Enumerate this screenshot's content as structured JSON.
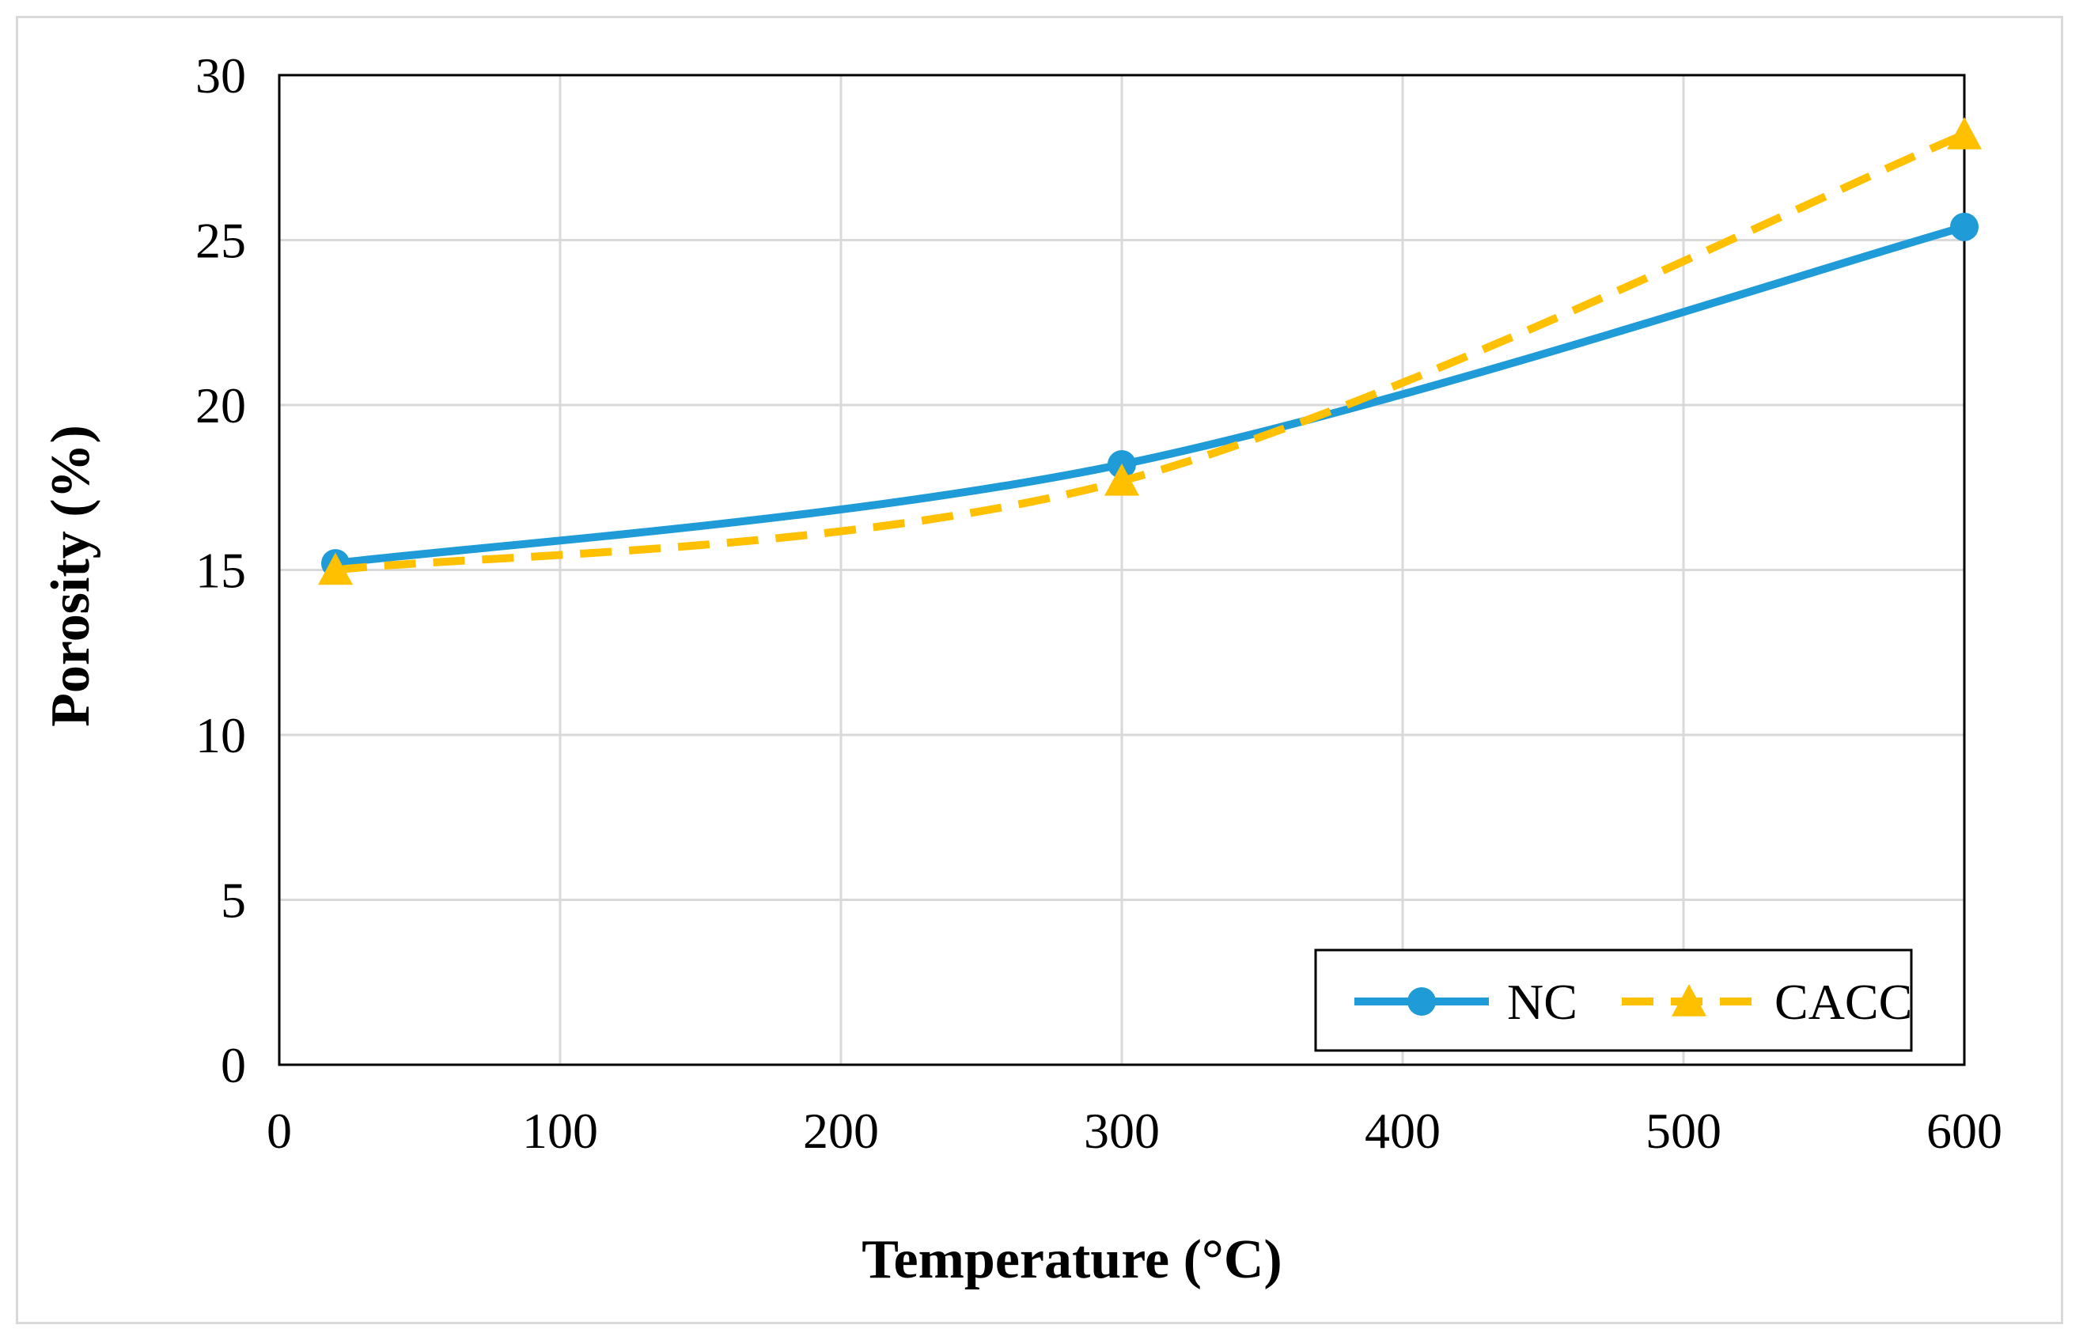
{
  "chart_data": {
    "type": "line",
    "title": "",
    "xlabel": "Temperature (°C)",
    "ylabel": "Porosity (%)",
    "xlim": [
      0,
      600
    ],
    "ylim": [
      0,
      30
    ],
    "xticks": [
      0,
      100,
      200,
      300,
      400,
      500,
      600
    ],
    "yticks": [
      0,
      5,
      10,
      15,
      20,
      25,
      30
    ],
    "grid": true,
    "legend_position": "bottom-right",
    "series": [
      {
        "name": "NC",
        "x": [
          20,
          300,
          600
        ],
        "y": [
          15.2,
          18.2,
          25.4
        ],
        "color": "#1f9bd7",
        "line_style": "solid",
        "marker": "circle"
      },
      {
        "name": "CACC",
        "x": [
          20,
          300,
          600
        ],
        "y": [
          15.0,
          17.7,
          28.2
        ],
        "color": "#ffc000",
        "line_style": "dashed",
        "marker": "triangle"
      }
    ]
  }
}
